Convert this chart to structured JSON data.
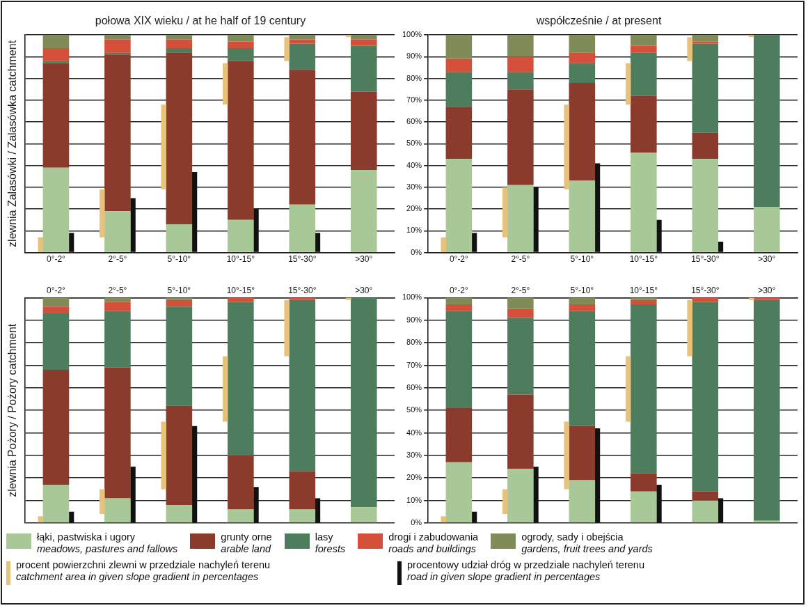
{
  "chart_data": [
    {
      "type": "bar",
      "title": "połowa XIX wieku / at he half of 19 century",
      "ylabel": "zlewnia Zalasówki / Zalasówka catchment",
      "categories": [
        "0°-2°",
        "2°-5°",
        "5°-10°",
        "10°-15°",
        "15°-30°",
        ">30°"
      ],
      "grid": "y",
      "legend": "bottom",
      "tick_labels": "x",
      "ylim": [
        0,
        100
      ],
      "yticks": [
        {
          "value": 0,
          "label": null
        },
        {
          "value": 10,
          "label": null
        },
        {
          "value": 20,
          "label": null
        },
        {
          "value": 30,
          "label": null
        },
        {
          "value": 40,
          "label": null
        },
        {
          "value": 50,
          "label": null
        },
        {
          "value": 60,
          "label": null
        },
        {
          "value": 70,
          "label": null
        },
        {
          "value": 80,
          "label": null
        },
        {
          "value": 90,
          "label": null
        },
        {
          "value": 100,
          "label": null
        }
      ],
      "series": [
        {
          "name": "łąki, pastwiska i ugory\nmeadows, pastures and fallows",
          "color": "#a8c898",
          "base": [
            0,
            0,
            0,
            0,
            0,
            0
          ],
          "values": [
            39,
            19,
            13,
            15,
            22,
            38
          ]
        },
        {
          "name": "grunty orne\narable land",
          "color": "#8b3b2b",
          "base": [
            39,
            19,
            13,
            15,
            22,
            38
          ],
          "values": [
            48,
            72,
            79,
            73,
            62,
            36
          ]
        },
        {
          "name": "lasy\nforests",
          "color": "#4d7d5c",
          "base": [
            87,
            91,
            92,
            88,
            84,
            74
          ],
          "values": [
            1,
            1,
            2,
            6,
            12,
            21
          ]
        },
        {
          "name": "drogi i zabudowania\nroads and buildings",
          "color": "#d5503b",
          "base": [
            88,
            92,
            94,
            94,
            96,
            95
          ],
          "values": [
            6,
            6,
            4,
            3,
            2,
            3
          ]
        },
        {
          "name": "ogrody, sady i obejścia\ngardens, fruit trees and yards",
          "color": "#7f8c57",
          "base": [
            94,
            98,
            98,
            97,
            98,
            98
          ],
          "values": [
            6,
            2,
            2,
            3,
            2,
            2
          ]
        },
        {
          "name": "procent powierzchni zlewni w przedziale nachyleń terenu\ncatchment area in given slope gradient in percentages",
          "color": "#e8c27a",
          "base": [
            0,
            7,
            29,
            68,
            88,
            99
          ],
          "values": [
            7,
            22,
            39,
            19,
            11,
            1
          ]
        },
        {
          "name": "procentowy udział dróg w przedziale nachyleń terenu\nroad in given slope gradient in percentages",
          "color": "#111111",
          "base": [
            0,
            0,
            0,
            0,
            0,
            null
          ],
          "values": [
            9,
            25,
            37,
            20,
            9,
            null
          ]
        }
      ]
    },
    {
      "type": "bar",
      "title": "współcześnie / at present",
      "categories": [
        "0°-2°",
        "2°-5°",
        "5°-10°",
        "10°-15°",
        "15°-30°",
        ">30°"
      ],
      "grid": "y",
      "ylim": [
        0,
        100
      ],
      "yticks": [
        {
          "value": 0,
          "label": "0%"
        },
        {
          "value": 10,
          "label": "10%"
        },
        {
          "value": 20,
          "label": "20%"
        },
        {
          "value": 30,
          "label": "30%"
        },
        {
          "value": 40,
          "label": "40%"
        },
        {
          "value": 50,
          "label": "50%"
        },
        {
          "value": 60,
          "label": "60%"
        },
        {
          "value": 70,
          "label": "70%"
        },
        {
          "value": 80,
          "label": "80%"
        },
        {
          "value": 90,
          "label": "90%"
        },
        {
          "value": 100,
          "label": "100%"
        }
      ],
      "series": [
        {
          "color": "#a8c898",
          "base": [
            0,
            0,
            0,
            0,
            0,
            0
          ],
          "values": [
            43,
            31,
            33,
            46,
            43,
            21
          ]
        },
        {
          "color": "#8b3b2b",
          "base": [
            43,
            31,
            33,
            46,
            43,
            null
          ],
          "values": [
            24,
            44,
            45,
            26,
            12,
            null
          ]
        },
        {
          "color": "#4d7d5c",
          "base": [
            67,
            75,
            78,
            72,
            55,
            21
          ],
          "values": [
            16,
            8,
            9,
            20,
            41,
            79
          ]
        },
        {
          "color": "#d5503b",
          "base": [
            83,
            83,
            87,
            92,
            96,
            null
          ],
          "values": [
            6,
            7,
            5,
            3,
            1,
            null
          ]
        },
        {
          "color": "#7f8c57",
          "base": [
            89,
            90,
            92,
            95,
            97,
            null
          ],
          "values": [
            11,
            10,
            8,
            5,
            3,
            null
          ]
        },
        {
          "color": "#e8c27a",
          "base": [
            0,
            7,
            29,
            68,
            88,
            99
          ],
          "values": [
            7,
            23,
            39,
            19,
            11,
            1
          ]
        },
        {
          "color": "#111111",
          "base": [
            0,
            0,
            0,
            0,
            0,
            null
          ],
          "values": [
            9,
            30,
            41,
            15,
            5,
            null
          ]
        }
      ]
    },
    {
      "type": "bar",
      "ylabel": "zlewnia Pożory / Pożory catchment",
      "categories": [
        "0°-2°",
        "2°-5°",
        "5°-10°",
        "10°-15°",
        "15°-30°",
        ">30°"
      ],
      "grid": "y",
      "tick_labels": "x",
      "ylim": [
        0,
        100
      ],
      "yticks": [
        {
          "value": 0,
          "label": null
        },
        {
          "value": 10,
          "label": null
        },
        {
          "value": 20,
          "label": null
        },
        {
          "value": 30,
          "label": null
        },
        {
          "value": 40,
          "label": null
        },
        {
          "value": 50,
          "label": null
        },
        {
          "value": 60,
          "label": null
        },
        {
          "value": 70,
          "label": null
        },
        {
          "value": 80,
          "label": null
        },
        {
          "value": 90,
          "label": null
        },
        {
          "value": 100,
          "label": null
        }
      ],
      "series": [
        {
          "color": "#a8c898",
          "base": [
            0,
            0,
            0,
            0,
            0,
            0
          ],
          "values": [
            17,
            11,
            8,
            6,
            6,
            7
          ]
        },
        {
          "color": "#8b3b2b",
          "base": [
            17,
            11,
            8,
            6,
            6,
            null
          ],
          "values": [
            51,
            58,
            44,
            24,
            17,
            null
          ]
        },
        {
          "color": "#4d7d5c",
          "base": [
            68,
            69,
            52,
            30,
            23,
            7
          ],
          "values": [
            25,
            25,
            44,
            68,
            76,
            93
          ]
        },
        {
          "color": "#d5503b",
          "base": [
            93,
            94,
            96,
            98,
            99,
            null
          ],
          "values": [
            3,
            4,
            3,
            2,
            1,
            null
          ]
        },
        {
          "color": "#7f8c57",
          "base": [
            96,
            98,
            99,
            null,
            null,
            null
          ],
          "values": [
            4,
            2,
            1,
            null,
            null,
            null
          ]
        },
        {
          "color": "#e8c27a",
          "base": [
            0,
            4,
            15,
            45,
            74,
            99
          ],
          "values": [
            3,
            11,
            30,
            29,
            25,
            1
          ]
        },
        {
          "color": "#111111",
          "base": [
            0,
            0,
            0,
            0,
            0,
            null
          ],
          "values": [
            5,
            25,
            43,
            16,
            11,
            null
          ]
        }
      ]
    },
    {
      "type": "bar",
      "categories": [
        "0°-2°",
        "2°-5°",
        "5°-10°",
        "10°-15°",
        "15°-30°",
        ">30°"
      ],
      "grid": "y",
      "ylim": [
        0,
        100
      ],
      "yticks": [
        {
          "value": 0,
          "label": "0%"
        },
        {
          "value": 10,
          "label": "10%"
        },
        {
          "value": 20,
          "label": "20%"
        },
        {
          "value": 30,
          "label": "30%"
        },
        {
          "value": 40,
          "label": "40%"
        },
        {
          "value": 50,
          "label": "50%"
        },
        {
          "value": 60,
          "label": "60%"
        },
        {
          "value": 70,
          "label": "70%"
        },
        {
          "value": 80,
          "label": "80%"
        },
        {
          "value": 90,
          "label": "90%"
        },
        {
          "value": 100,
          "label": "100%"
        }
      ],
      "series": [
        {
          "color": "#a8c898",
          "base": [
            0,
            0,
            0,
            0,
            0,
            0
          ],
          "values": [
            27,
            24,
            19,
            14,
            10,
            1
          ]
        },
        {
          "color": "#8b3b2b",
          "base": [
            27,
            24,
            19,
            14,
            10,
            null
          ],
          "values": [
            24,
            33,
            24,
            8,
            4,
            null
          ]
        },
        {
          "color": "#4d7d5c",
          "base": [
            51,
            57,
            43,
            22,
            14,
            1
          ],
          "values": [
            43,
            34,
            51,
            75,
            84,
            98
          ]
        },
        {
          "color": "#d5503b",
          "base": [
            94,
            91,
            94,
            97,
            98,
            99
          ],
          "values": [
            3,
            4,
            3,
            2,
            2,
            1
          ]
        },
        {
          "color": "#7f8c57",
          "base": [
            97,
            95,
            97,
            99,
            null,
            null
          ],
          "values": [
            3,
            5,
            3,
            1,
            null,
            null
          ]
        },
        {
          "color": "#e8c27a",
          "base": [
            0,
            4,
            15,
            45,
            74,
            99
          ],
          "values": [
            3,
            11,
            30,
            29,
            25,
            1
          ]
        },
        {
          "color": "#111111",
          "base": [
            0,
            0,
            0,
            0,
            0,
            null
          ],
          "values": [
            5,
            25,
            42,
            17,
            11,
            null
          ]
        }
      ]
    }
  ]
}
